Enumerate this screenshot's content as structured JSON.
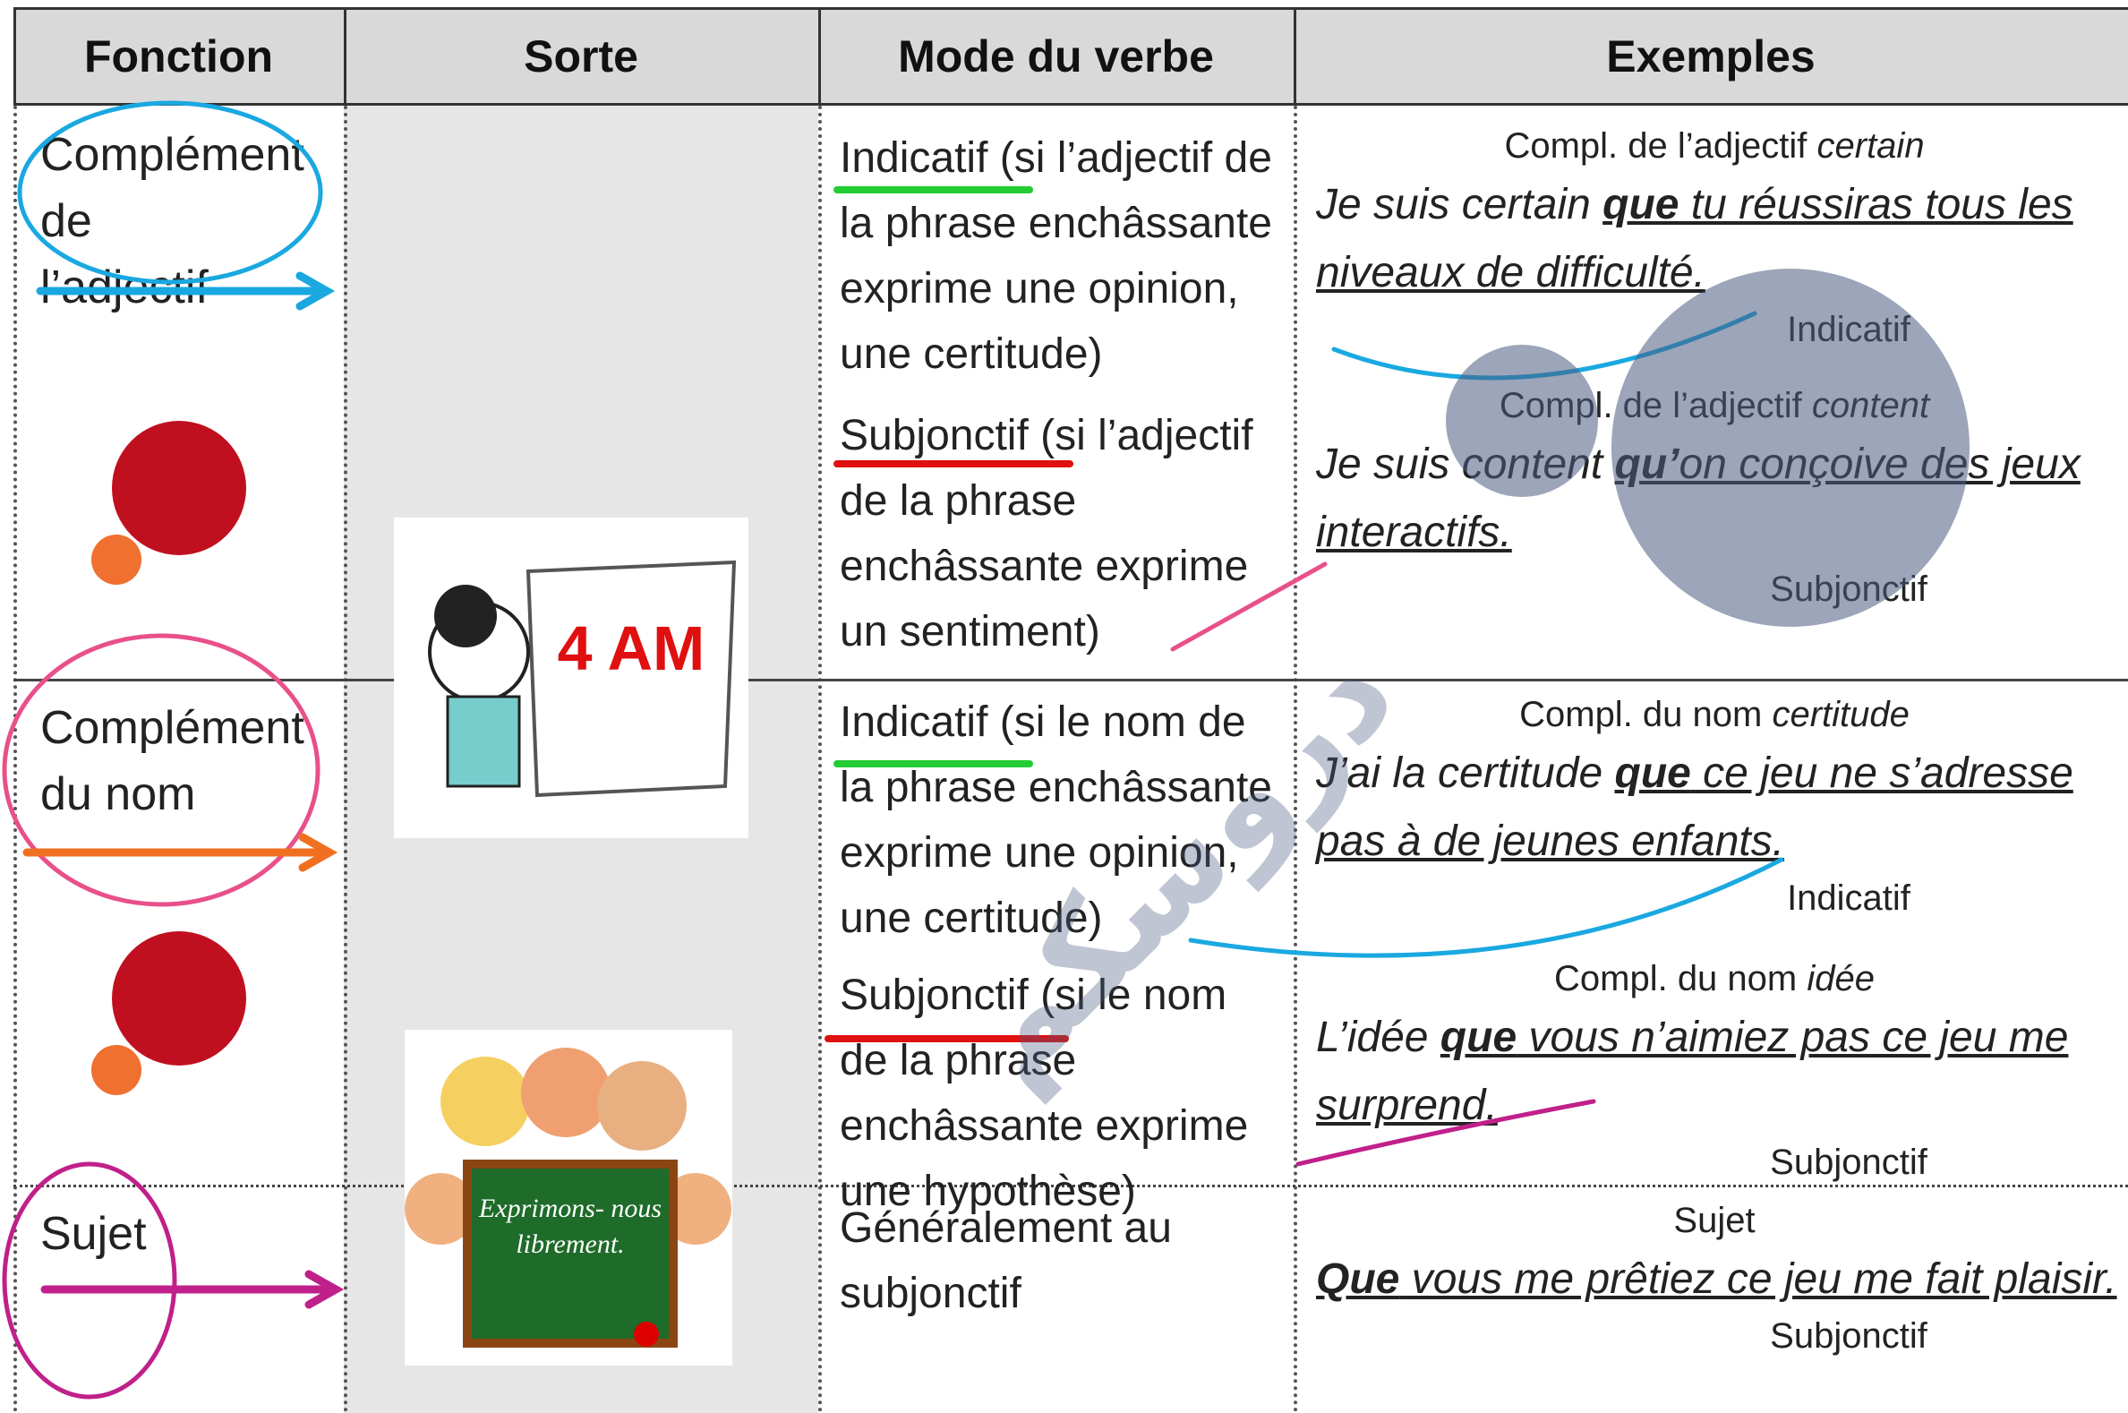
{
  "header": [
    "Fonction",
    "Sorte",
    "Mode du verbe",
    "Exemples"
  ],
  "rows": [
    {
      "fonction": "Complément de l’adjectif",
      "modes": [
        "Indicatif (si l’adjectif de la phrase enchâssante exprime une opinion, une certitude)",
        "Subjonctif (si l’adjectif de la phrase enchâssante exprime un sentiment)"
      ],
      "examples": [
        {
          "label": "Compl. de l’adjectif",
          "label_em": "certain",
          "before": "Je suis certain ",
          "conj": "que",
          "after": " tu réussiras tous les niveaux de difficulté.",
          "mode": "Indicatif"
        },
        {
          "label": "Compl. de l’adjectif",
          "label_em": "content",
          "before": "Je suis content ",
          "conj": "qu’",
          "after": "on conçoive des jeux interactifs.",
          "mode": "Subjonctif"
        }
      ]
    },
    {
      "fonction": "Complément du nom",
      "modes": [
        "Indicatif (si le nom de la phrase enchâssante exprime une opinion, une certitude)",
        "Subjonctif (si le nom de la phrase enchâssante exprime une hypothèse)"
      ],
      "examples": [
        {
          "label": "Compl. du nom",
          "label_em": "certitude",
          "before": "J’ai la certitude ",
          "conj": "que",
          "after": " ce jeu ne s’adresse pas à de jeunes enfants.",
          "mode": "Indicatif"
        },
        {
          "label": "Compl. du nom",
          "label_em": "idée",
          "before": "L’idée ",
          "conj": "que",
          "after": " vous n’aimiez pas ce jeu me surprend.",
          "mode": "Subjonctif"
        }
      ]
    },
    {
      "fonction": "Sujet",
      "modes": [
        "Généralement au subjonctif"
      ],
      "examples": [
        {
          "label": "Sujet",
          "conj": "Que",
          "after": " vous me prêtiez ce jeu me fait plaisir.",
          "mode": "Subjonctif"
        }
      ]
    }
  ],
  "images": [
    "4 AM",
    "Exprimons- nous librement."
  ],
  "watermark": "دروسكم"
}
